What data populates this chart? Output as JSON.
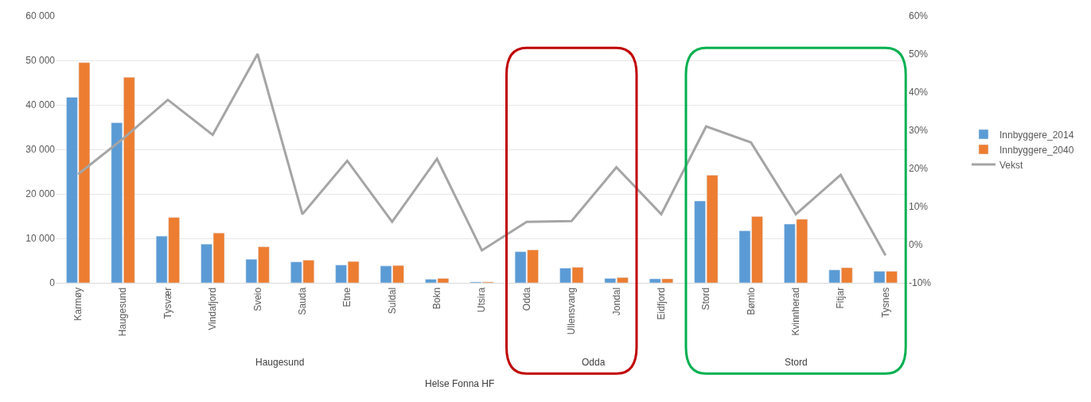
{
  "chart_data": {
    "type": "bar",
    "categories": [
      "Karmøy",
      "Haugesund",
      "Tysvær",
      "Vindafjord",
      "Sveio",
      "Sauda",
      "Etne",
      "Suldal",
      "Bokn",
      "Utsira",
      "Odda",
      "Ullensvang",
      "Jondal",
      "Eidfjord",
      "Stord",
      "Bømlo",
      "Kvinnherad",
      "Fitjar",
      "Tysnes"
    ],
    "series": [
      {
        "name": "Innbyggere_2014",
        "color": "#5b9bd5",
        "values": [
          41700,
          36000,
          10500,
          8700,
          5300,
          4700,
          4000,
          3800,
          800,
          200,
          7000,
          3300,
          1000,
          900,
          18400,
          11700,
          13200,
          2900,
          2600
        ]
      },
      {
        "name": "Innbyggere_2040",
        "color": "#ed7d31",
        "values": [
          49500,
          46200,
          14700,
          11200,
          8100,
          5100,
          4800,
          3900,
          1000,
          200,
          7400,
          3500,
          1200,
          900,
          24200,
          14900,
          14300,
          3400,
          2600
        ]
      },
      {
        "name": "Vekst",
        "type": "line",
        "axis": "y2",
        "color": "#a5a5a5",
        "values": [
          18.5,
          27.8,
          38,
          28.8,
          50,
          8,
          22,
          6,
          22.5,
          -1.5,
          6,
          6.2,
          20.3,
          8,
          31,
          26.8,
          8,
          18.3,
          -2.8
        ]
      }
    ],
    "xlabel": "Helse Fonna HF",
    "annotations": [
      "Haugesund",
      "Odda",
      "Stord"
    ],
    "ylim": [
      0,
      60000
    ],
    "yticks": [
      0,
      {
        "value": 10000,
        "label": "10 000"
      },
      {
        "value": 20000,
        "label": "20 000"
      },
      {
        "value": 30000,
        "label": "30 000"
      },
      {
        "value": 40000,
        "label": "40 000"
      },
      {
        "value": 50000,
        "label": "50 000"
      },
      {
        "value": 60000,
        "label": "60 000"
      }
    ],
    "y2lim": [
      -10,
      60
    ],
    "y2ticks": [
      {
        "value": -10,
        "label": "-10%"
      },
      {
        "value": 0,
        "label": "0%"
      },
      {
        "value": 10,
        "label": "10%"
      },
      {
        "value": 20,
        "label": "20%"
      },
      {
        "value": 30,
        "label": "30%"
      },
      {
        "value": 40,
        "label": "40%"
      },
      {
        "value": 50,
        "label": "50%"
      },
      {
        "value": 60,
        "label": "60%"
      }
    ],
    "grid": "y",
    "legend": "right"
  }
}
